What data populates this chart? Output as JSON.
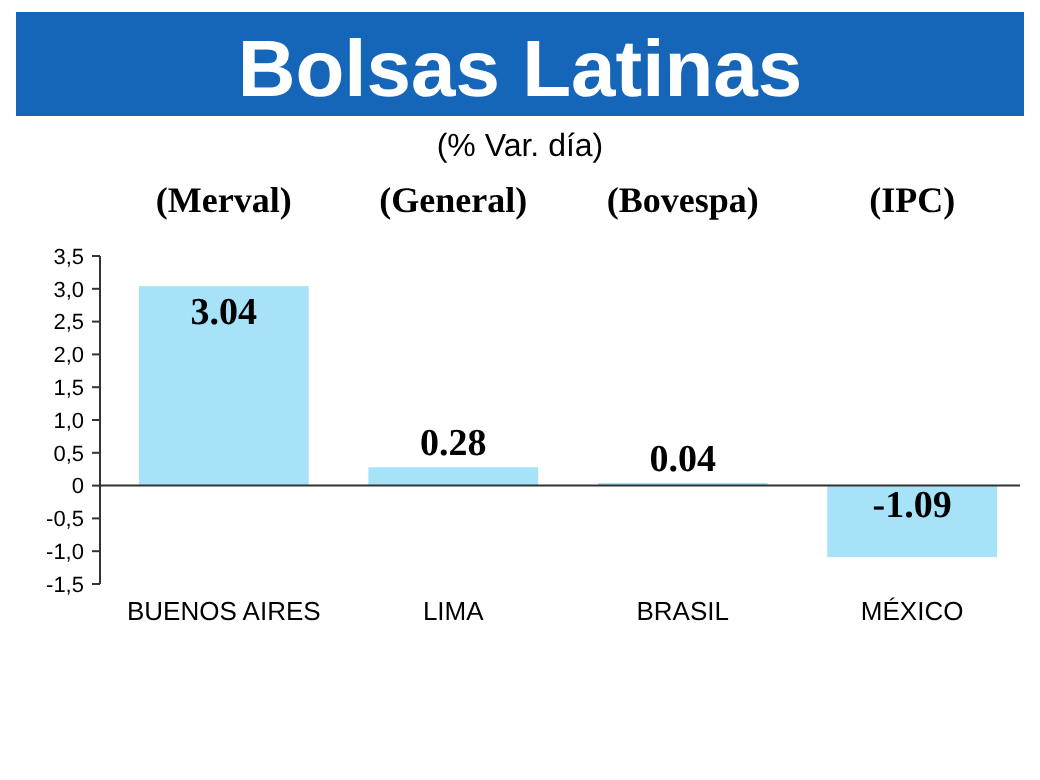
{
  "chart_data": {
    "type": "bar",
    "title": "Bolsas Latinas",
    "subtitle": "(% Var. día)",
    "categories": [
      "BUENOS AIRES",
      "LIMA",
      "BRASIL",
      "MÉXICO"
    ],
    "values": [
      3.04,
      0.28,
      0.04,
      -1.09
    ],
    "color": "#a6e3f9",
    "value_labels": [
      "3.04",
      "0.28",
      "0.04",
      "-1.09"
    ],
    "annotations": [
      "(Merval)",
      "(General)",
      "(Bovespa)",
      "(IPC)"
    ],
    "ylim": [
      -1.5,
      3.5
    ],
    "yticks": [
      {
        "value": -1.5,
        "label": "-1,5"
      },
      {
        "value": -1,
        "label": "-1,0"
      },
      {
        "value": -0.5,
        "label": "-0,5"
      },
      0,
      {
        "value": 0.5,
        "label": "0,5"
      },
      {
        "value": 1,
        "label": "1,0"
      },
      {
        "value": 1.5,
        "label": "1,5"
      },
      {
        "value": 2,
        "label": "2,0"
      },
      {
        "value": 2.5,
        "label": "2,5"
      },
      {
        "value": 3,
        "label": "3,0"
      },
      {
        "value": 3.5,
        "label": "3,5"
      }
    ]
  }
}
